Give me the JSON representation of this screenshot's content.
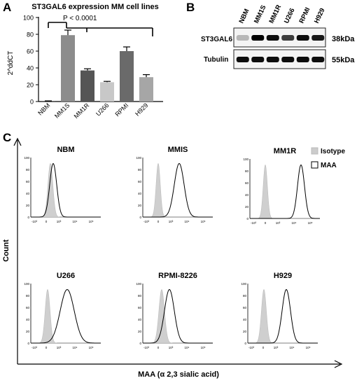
{
  "panels": {
    "a": {
      "letter": "A",
      "chart_data": {
        "type": "bar",
        "title": "ST3GAL6 expression MM cell lines",
        "ylabel": "2^ddCT",
        "xlabel": "",
        "categories": [
          "NBM",
          "MM1S",
          "MM1R",
          "U266",
          "RPMI",
          "H929"
        ],
        "values": [
          0.5,
          79,
          37,
          23,
          60,
          29
        ],
        "errors": [
          0.3,
          6,
          2,
          1,
          5,
          3
        ],
        "colors": [
          "#3a3a3a",
          "#8c8c8c",
          "#555555",
          "#c8c8c8",
          "#6a6a6a",
          "#a6a6a6"
        ],
        "ylim": [
          0,
          100
        ],
        "yticks": [
          "0",
          "20",
          "40",
          "60",
          "80",
          "100"
        ],
        "annotation": "P < 0.0001",
        "grid": false
      }
    },
    "b": {
      "letter": "B",
      "lanes": [
        "NBM",
        "MM1S",
        "MM1R",
        "U266",
        "RPMI",
        "H929"
      ],
      "rows": [
        {
          "label": "ST3GAL6",
          "size": "38kDa"
        },
        {
          "label": "Tubulin",
          "size": "55kDa"
        }
      ]
    },
    "c": {
      "letter": "C",
      "ylabel": "Count",
      "xlabel": "MAA (α 2,3 sialic acid)",
      "legend": {
        "isotype": "Isotype",
        "maa": "MAA"
      },
      "yticks": [
        "0",
        "20",
        "40",
        "60",
        "80",
        "100"
      ],
      "xticks": [
        "-10³",
        "0",
        "10³",
        "10⁴",
        "10⁵"
      ],
      "histograms": [
        {
          "title": "NBM"
        },
        {
          "title": "MMIS"
        },
        {
          "title": "MM1R"
        },
        {
          "title": "U266"
        },
        {
          "title": "RPMI-8226"
        },
        {
          "title": "H929"
        }
      ]
    }
  }
}
